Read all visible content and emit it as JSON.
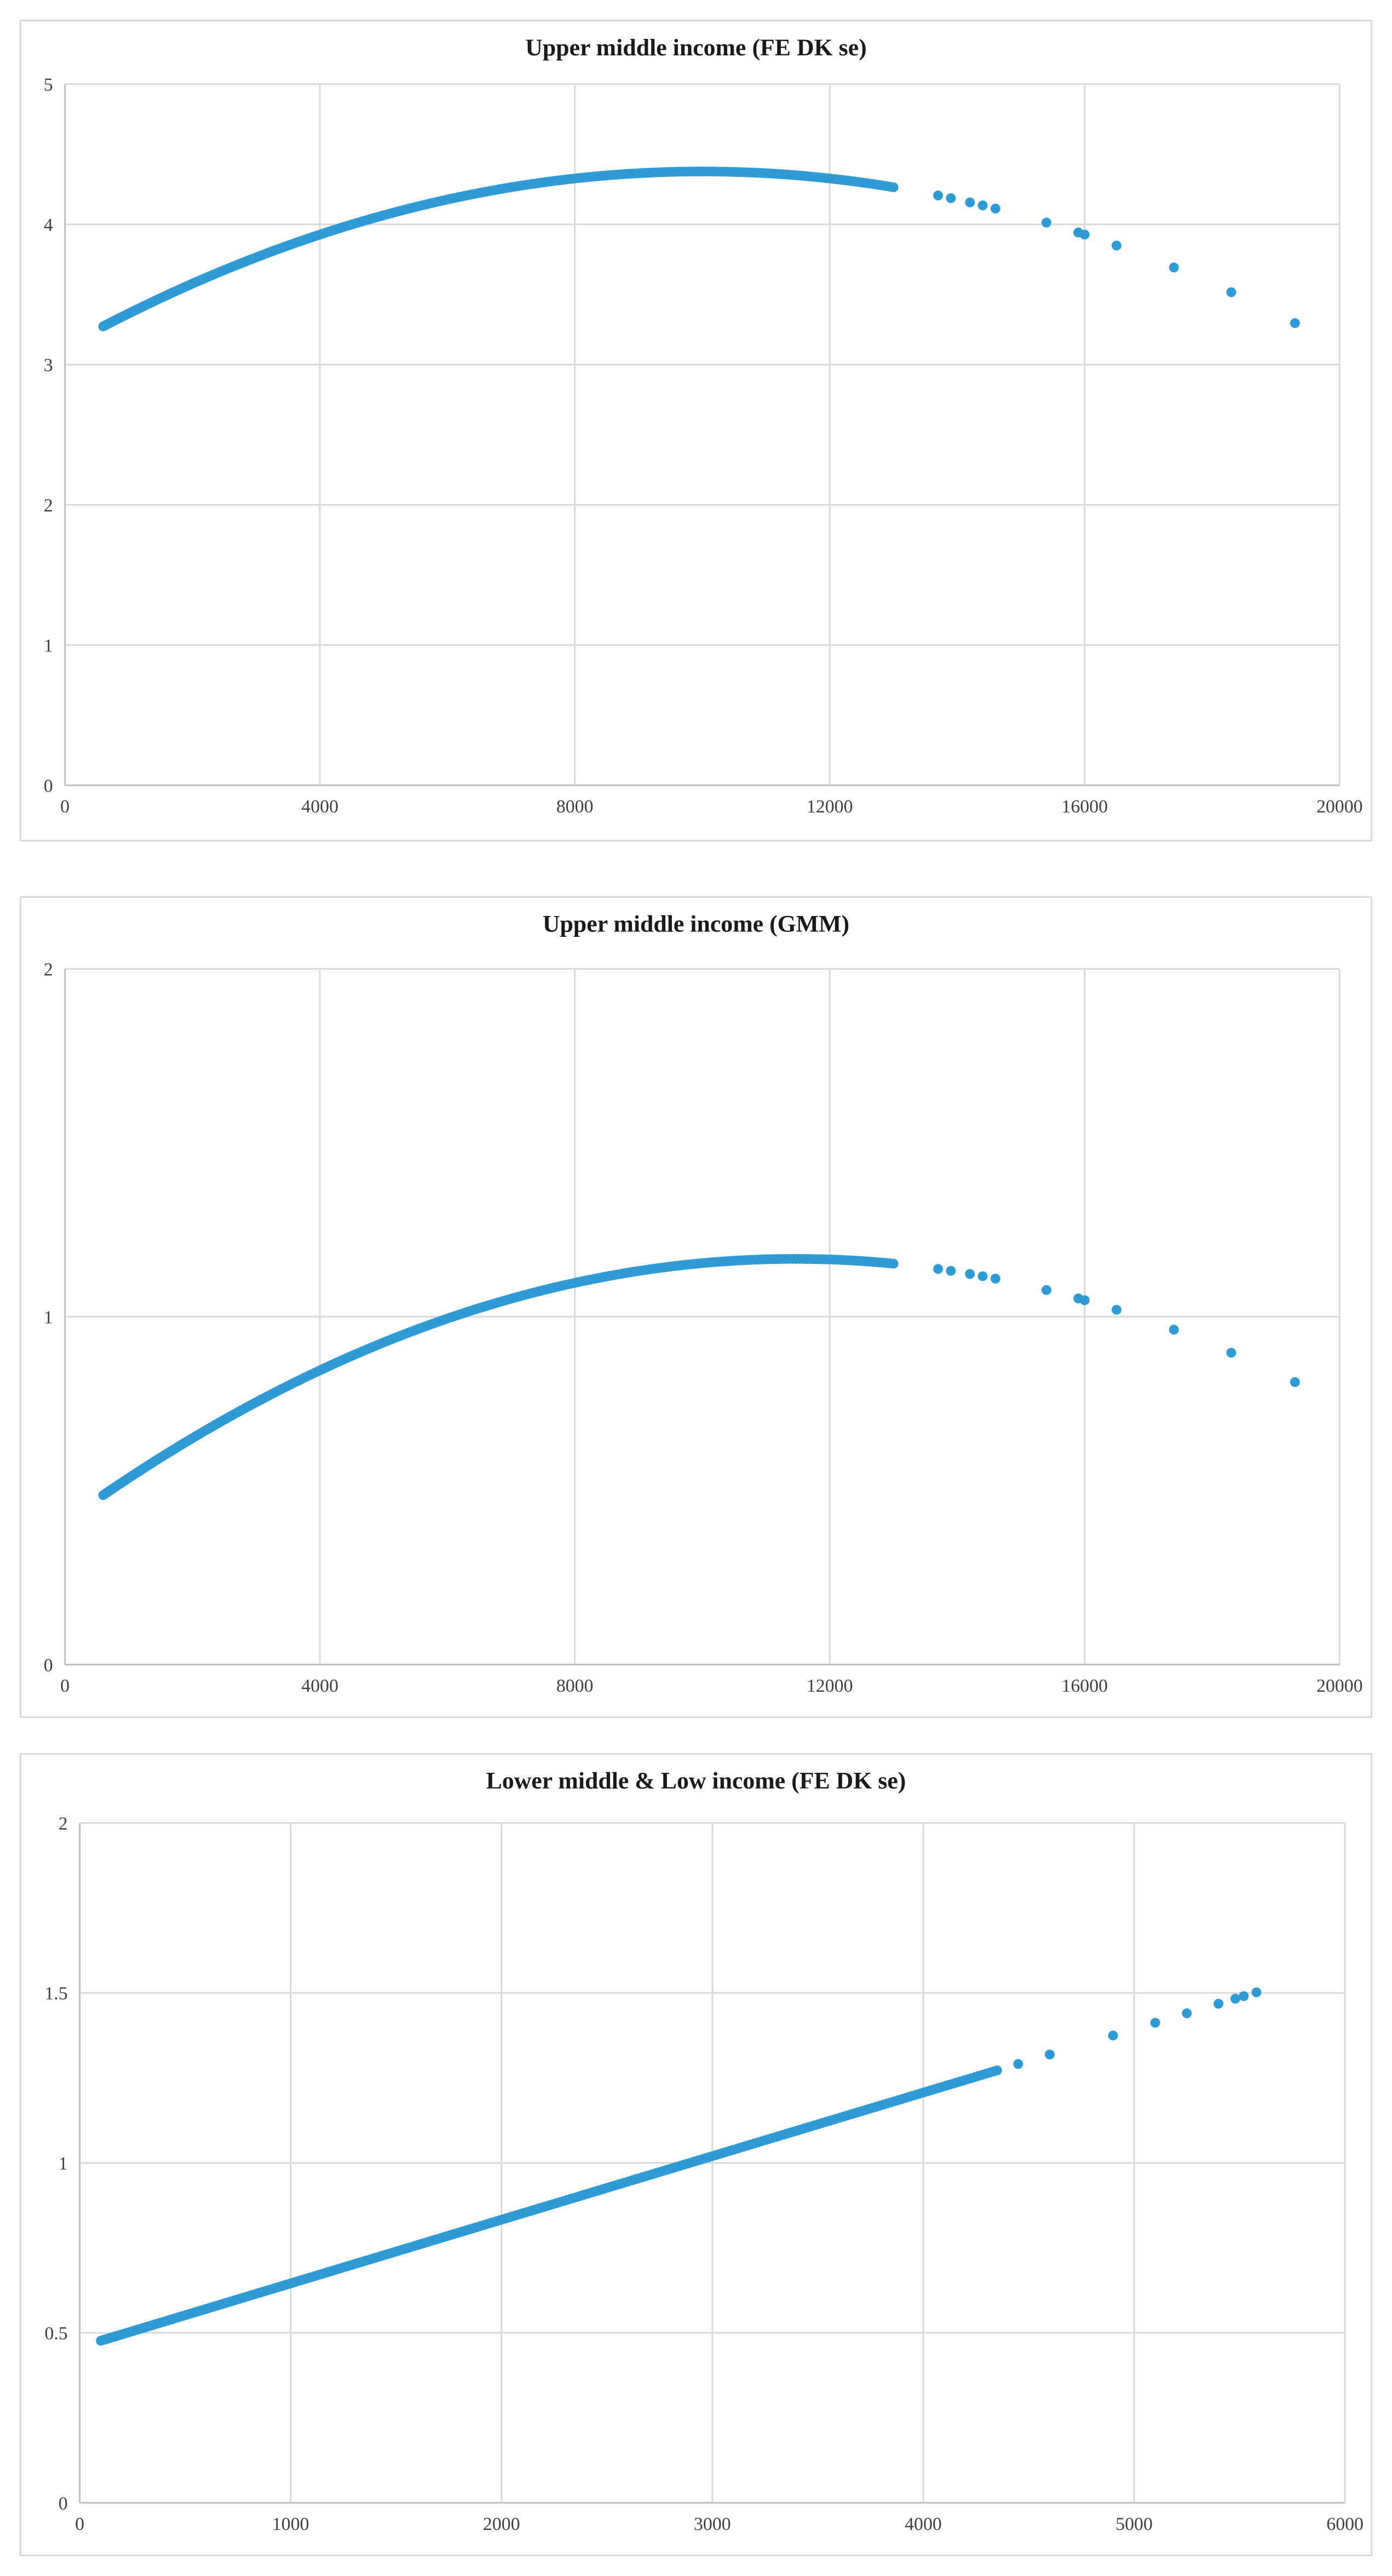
{
  "chart_data": [
    {
      "type": "scatter",
      "title": "Upper middle income (FE DK se)",
      "xlabel": "",
      "ylabel": "",
      "xlim": [
        0,
        20000
      ],
      "ylim": [
        0,
        5
      ],
      "x_ticks": [
        0,
        4000,
        8000,
        12000,
        16000,
        20000
      ],
      "y_ticks": [
        0,
        1,
        2,
        3,
        4,
        5
      ],
      "grid": true,
      "legend": "none",
      "color": "#2e9bd6",
      "curve": {
        "x_start": 600,
        "x_dense_end": 13000,
        "dense_count": 260,
        "sparse_x": [
          13700,
          13900,
          14200,
          14400,
          14600,
          15400,
          15900,
          16000,
          16500,
          17400,
          18300,
          19300
        ]
      },
      "points_formula": "y = 3.127 + 2.5e-4*x - 1.25e-8*x^2"
    },
    {
      "type": "scatter",
      "title": "Upper middle income (GMM)",
      "xlabel": "",
      "ylabel": "",
      "xlim": [
        0,
        20000
      ],
      "ylim": [
        0,
        2
      ],
      "x_ticks": [
        0,
        4000,
        8000,
        12000,
        16000,
        20000
      ],
      "y_ticks": [
        0,
        1,
        2
      ],
      "grid": true,
      "legend": "none",
      "color": "#2e9bd6",
      "curve": {
        "x_start": 600,
        "x_dense_end": 13000,
        "dense_count": 260,
        "sparse_x": [
          13700,
          13900,
          14200,
          14400,
          14600,
          15400,
          15900,
          16000,
          16500,
          17400,
          18300,
          19300
        ]
      },
      "points_formula": "y = 0.41 + 1.32e-4*x - 5.76e-9*x^2"
    },
    {
      "type": "scatter",
      "title": "Lower middle & Low income (FE DK se)",
      "xlabel": "",
      "ylabel": "",
      "xlim": [
        0,
        6000
      ],
      "ylim": [
        0,
        2
      ],
      "x_ticks": [
        0,
        1000,
        2000,
        3000,
        4000,
        5000,
        6000
      ],
      "y_ticks": [
        0,
        0.5,
        1,
        1.5,
        2
      ],
      "grid": true,
      "legend": "none",
      "color": "#2e9bd6",
      "curve": {
        "x_start": 100,
        "x_dense_end": 4350,
        "dense_count": 280,
        "sparse_x": [
          4450,
          4600,
          4900,
          5100,
          5250,
          5400,
          5480,
          5520,
          5580
        ]
      },
      "points_formula": "y = 0.458 + 1.876e-4*x - 1e-10*x^2"
    }
  ]
}
